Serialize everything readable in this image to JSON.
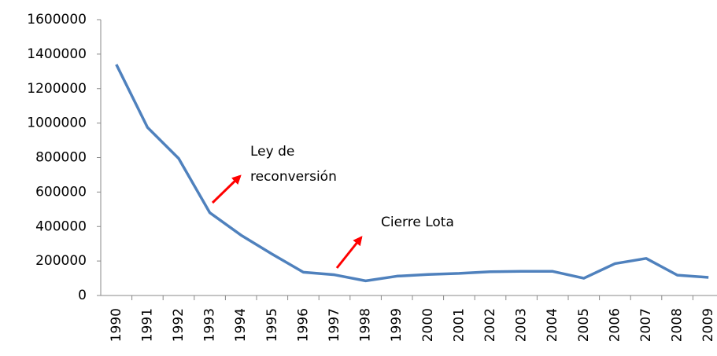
{
  "chart_data": {
    "type": "line",
    "categories": [
      "1990",
      "1991",
      "1992",
      "1993",
      "1994",
      "1995",
      "1996",
      "1997",
      "1998",
      "1999",
      "2000",
      "2001",
      "2002",
      "2003",
      "2004",
      "2005",
      "2006",
      "2007",
      "2008",
      "2009"
    ],
    "series": [
      {
        "color": "#4f81bd",
        "values": [
          1340000,
          975000,
          795000,
          480000,
          350000,
          240000,
          135000,
          120000,
          85000,
          112000,
          122000,
          128000,
          138000,
          140000,
          140000,
          100000,
          185000,
          215000,
          118000,
          105000
        ]
      }
    ],
    "ylim": [
      0,
      1600000
    ],
    "yticks": [
      0,
      200000,
      400000,
      600000,
      800000,
      1000000,
      1200000,
      1400000,
      1600000
    ],
    "grid": false,
    "annotations": [
      {
        "lines": [
          "Ley de",
          "reconversión"
        ]
      },
      {
        "lines": [
          "Cierre Lota"
        ]
      }
    ]
  }
}
